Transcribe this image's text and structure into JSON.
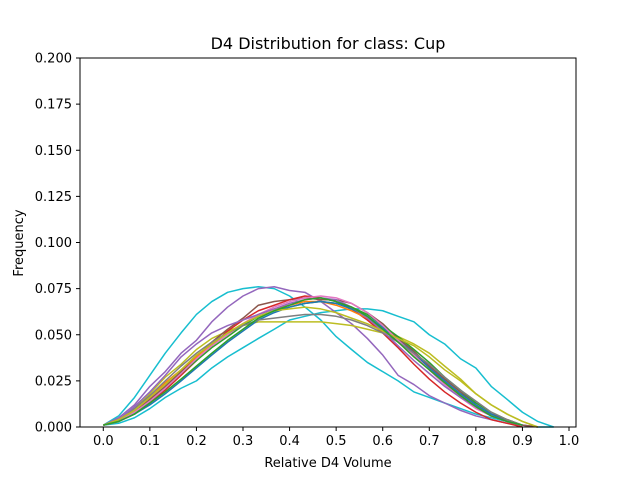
{
  "chart_data": {
    "type": "line",
    "title": "D4 Distribution for class: Cup",
    "xlabel": "Relative D4 Volume",
    "ylabel": "Frequency",
    "xlim": [
      -0.05,
      1.015
    ],
    "ylim": [
      0,
      0.2
    ],
    "xticks": [
      "0.0",
      "0.1",
      "0.2",
      "0.3",
      "0.4",
      "0.5",
      "0.6",
      "0.7",
      "0.8",
      "0.9",
      "1.0"
    ],
    "xtick_values": [
      0,
      0.1,
      0.2,
      0.3,
      0.4,
      0.5,
      0.6,
      0.7,
      0.8,
      0.9,
      1.0
    ],
    "yticks": [
      "0.000",
      "0.025",
      "0.050",
      "0.075",
      "0.100",
      "0.125",
      "0.150",
      "0.175",
      "0.200"
    ],
    "ytick_values": [
      0,
      0.025,
      0.05,
      0.075,
      0.1,
      0.125,
      0.15,
      0.175,
      0.2
    ],
    "grid": false,
    "legend": "none",
    "series": [
      {
        "color": "#17becf",
        "x": [
          0.0,
          0.033,
          0.067,
          0.1,
          0.133,
          0.167,
          0.2,
          0.233,
          0.267,
          0.3,
          0.333,
          0.367,
          0.4,
          0.433,
          0.467,
          0.5,
          0.533,
          0.567,
          0.6,
          0.633,
          0.667,
          0.7,
          0.733,
          0.767,
          0.8,
          0.833,
          0.867,
          0.9,
          0.933,
          0.967
        ],
        "values": [
          0.001,
          0.006,
          0.016,
          0.028,
          0.04,
          0.051,
          0.061,
          0.068,
          0.073,
          0.075,
          0.076,
          0.075,
          0.071,
          0.065,
          0.058,
          0.049,
          0.042,
          0.035,
          0.03,
          0.025,
          0.019,
          0.016,
          0.013,
          0.01,
          0.007,
          0.005,
          0.003,
          0.001,
          0.0,
          0.0
        ]
      },
      {
        "color": "#17becf",
        "x": [
          0.0,
          0.033,
          0.067,
          0.1,
          0.133,
          0.167,
          0.2,
          0.233,
          0.267,
          0.3,
          0.333,
          0.367,
          0.4,
          0.433,
          0.467,
          0.5,
          0.533,
          0.567,
          0.6,
          0.633,
          0.667,
          0.7,
          0.733,
          0.767,
          0.8,
          0.833,
          0.867,
          0.9,
          0.933,
          0.967
        ],
        "values": [
          0.001,
          0.002,
          0.005,
          0.01,
          0.016,
          0.021,
          0.025,
          0.032,
          0.038,
          0.043,
          0.048,
          0.053,
          0.058,
          0.06,
          0.062,
          0.063,
          0.064,
          0.064,
          0.063,
          0.06,
          0.057,
          0.05,
          0.045,
          0.037,
          0.032,
          0.022,
          0.015,
          0.008,
          0.003,
          0.0
        ]
      },
      {
        "color": "#9467bd",
        "x": [
          0.0,
          0.033,
          0.067,
          0.1,
          0.133,
          0.167,
          0.2,
          0.233,
          0.267,
          0.3,
          0.333,
          0.367,
          0.4,
          0.433,
          0.467,
          0.5,
          0.533,
          0.567,
          0.6,
          0.633,
          0.667,
          0.7,
          0.733,
          0.767,
          0.8,
          0.833,
          0.867,
          0.9,
          0.933
        ],
        "values": [
          0.001,
          0.005,
          0.012,
          0.022,
          0.03,
          0.04,
          0.047,
          0.057,
          0.065,
          0.071,
          0.075,
          0.076,
          0.074,
          0.073,
          0.068,
          0.062,
          0.056,
          0.048,
          0.039,
          0.028,
          0.023,
          0.017,
          0.013,
          0.009,
          0.006,
          0.004,
          0.002,
          0.001,
          0.0
        ]
      },
      {
        "color": "#bcbd22",
        "x": [
          0.0,
          0.033,
          0.067,
          0.1,
          0.133,
          0.167,
          0.2,
          0.233,
          0.267,
          0.3,
          0.333,
          0.367,
          0.4,
          0.433,
          0.467,
          0.5,
          0.533,
          0.567,
          0.6,
          0.633,
          0.667,
          0.7,
          0.733,
          0.767,
          0.8,
          0.833,
          0.867,
          0.9,
          0.933
        ],
        "values": [
          0.001,
          0.004,
          0.01,
          0.018,
          0.027,
          0.034,
          0.042,
          0.048,
          0.052,
          0.055,
          0.057,
          0.057,
          0.057,
          0.057,
          0.057,
          0.056,
          0.055,
          0.053,
          0.051,
          0.049,
          0.045,
          0.04,
          0.033,
          0.026,
          0.018,
          0.012,
          0.007,
          0.003,
          0.0
        ]
      },
      {
        "color": "#8c564b",
        "x": [
          0.0,
          0.033,
          0.067,
          0.1,
          0.133,
          0.167,
          0.2,
          0.233,
          0.267,
          0.3,
          0.333,
          0.367,
          0.4,
          0.433,
          0.467,
          0.5,
          0.533,
          0.567,
          0.6,
          0.633,
          0.667,
          0.7,
          0.733,
          0.767,
          0.8,
          0.833,
          0.867,
          0.9,
          0.933
        ],
        "values": [
          0.001,
          0.003,
          0.008,
          0.015,
          0.022,
          0.03,
          0.038,
          0.046,
          0.053,
          0.059,
          0.066,
          0.068,
          0.069,
          0.07,
          0.069,
          0.069,
          0.067,
          0.062,
          0.056,
          0.048,
          0.041,
          0.033,
          0.026,
          0.019,
          0.012,
          0.007,
          0.004,
          0.001,
          0.0
        ]
      },
      {
        "color": "#d62728",
        "x": [
          0.0,
          0.033,
          0.067,
          0.1,
          0.133,
          0.167,
          0.2,
          0.233,
          0.267,
          0.3,
          0.333,
          0.367,
          0.4,
          0.433,
          0.467,
          0.5,
          0.533,
          0.567,
          0.6,
          0.633,
          0.667,
          0.7,
          0.733,
          0.767,
          0.8,
          0.833,
          0.867,
          0.9
        ],
        "values": [
          0.001,
          0.003,
          0.007,
          0.013,
          0.02,
          0.028,
          0.036,
          0.044,
          0.052,
          0.058,
          0.063,
          0.066,
          0.069,
          0.071,
          0.07,
          0.068,
          0.064,
          0.058,
          0.051,
          0.043,
          0.034,
          0.026,
          0.019,
          0.013,
          0.008,
          0.004,
          0.002,
          0.0
        ]
      },
      {
        "color": "#ff7f0e",
        "x": [
          0.0,
          0.033,
          0.067,
          0.1,
          0.133,
          0.167,
          0.2,
          0.233,
          0.267,
          0.3,
          0.333,
          0.367,
          0.4,
          0.433,
          0.467,
          0.5,
          0.533,
          0.567,
          0.6,
          0.633,
          0.667,
          0.7,
          0.733,
          0.767,
          0.8,
          0.833,
          0.867,
          0.9
        ],
        "values": [
          0.001,
          0.004,
          0.009,
          0.016,
          0.024,
          0.031,
          0.038,
          0.045,
          0.051,
          0.056,
          0.061,
          0.064,
          0.066,
          0.068,
          0.068,
          0.066,
          0.063,
          0.059,
          0.053,
          0.046,
          0.039,
          0.031,
          0.024,
          0.017,
          0.011,
          0.006,
          0.003,
          0.001
        ]
      },
      {
        "color": "#2ca02c",
        "x": [
          0.0,
          0.033,
          0.067,
          0.1,
          0.133,
          0.167,
          0.2,
          0.233,
          0.267,
          0.3,
          0.333,
          0.367,
          0.4,
          0.433,
          0.467,
          0.5,
          0.533,
          0.567,
          0.6,
          0.633,
          0.667,
          0.7,
          0.733,
          0.767,
          0.8,
          0.833,
          0.867,
          0.9
        ],
        "values": [
          0.001,
          0.003,
          0.008,
          0.014,
          0.021,
          0.029,
          0.036,
          0.043,
          0.049,
          0.055,
          0.06,
          0.063,
          0.065,
          0.067,
          0.068,
          0.067,
          0.065,
          0.061,
          0.055,
          0.049,
          0.042,
          0.035,
          0.027,
          0.02,
          0.013,
          0.008,
          0.004,
          0.001
        ]
      },
      {
        "color": "#1f77b4",
        "x": [
          0.0,
          0.033,
          0.067,
          0.1,
          0.133,
          0.167,
          0.2,
          0.233,
          0.267,
          0.3,
          0.333,
          0.367,
          0.4,
          0.433,
          0.467,
          0.5,
          0.533,
          0.567,
          0.6,
          0.633,
          0.667,
          0.7,
          0.733,
          0.767,
          0.8,
          0.833,
          0.867,
          0.9
        ],
        "values": [
          0.001,
          0.003,
          0.007,
          0.012,
          0.018,
          0.025,
          0.032,
          0.039,
          0.046,
          0.052,
          0.058,
          0.062,
          0.065,
          0.067,
          0.068,
          0.067,
          0.064,
          0.06,
          0.054,
          0.047,
          0.04,
          0.032,
          0.025,
          0.018,
          0.012,
          0.007,
          0.003,
          0.001
        ]
      },
      {
        "color": "#e377c2",
        "x": [
          0.0,
          0.033,
          0.067,
          0.1,
          0.133,
          0.167,
          0.2,
          0.233,
          0.267,
          0.3,
          0.333,
          0.367,
          0.4,
          0.433,
          0.467,
          0.5,
          0.533,
          0.567,
          0.6,
          0.633,
          0.667,
          0.7,
          0.733,
          0.767,
          0.8,
          0.833,
          0.867,
          0.9
        ],
        "values": [
          0.001,
          0.003,
          0.008,
          0.014,
          0.021,
          0.029,
          0.037,
          0.044,
          0.05,
          0.056,
          0.061,
          0.065,
          0.068,
          0.07,
          0.071,
          0.07,
          0.067,
          0.062,
          0.055,
          0.047,
          0.039,
          0.031,
          0.023,
          0.016,
          0.01,
          0.006,
          0.003,
          0.001
        ]
      },
      {
        "color": "#7f7f7f",
        "x": [
          0.0,
          0.033,
          0.067,
          0.1,
          0.133,
          0.167,
          0.2,
          0.233,
          0.267,
          0.3,
          0.333,
          0.367,
          0.4,
          0.433,
          0.467,
          0.5,
          0.533,
          0.567,
          0.6,
          0.633,
          0.667,
          0.7,
          0.733,
          0.767,
          0.8,
          0.833,
          0.867,
          0.9
        ],
        "values": [
          0.001,
          0.004,
          0.01,
          0.017,
          0.025,
          0.033,
          0.04,
          0.046,
          0.051,
          0.055,
          0.058,
          0.059,
          0.06,
          0.061,
          0.061,
          0.06,
          0.058,
          0.055,
          0.051,
          0.046,
          0.04,
          0.034,
          0.027,
          0.02,
          0.014,
          0.008,
          0.004,
          0.001
        ]
      },
      {
        "color": "#9467bd",
        "x": [
          0.0,
          0.033,
          0.067,
          0.1,
          0.133,
          0.167,
          0.2,
          0.233,
          0.267,
          0.3,
          0.333,
          0.367,
          0.4,
          0.433,
          0.467,
          0.5,
          0.533,
          0.567,
          0.6,
          0.633,
          0.667,
          0.7,
          0.733,
          0.767,
          0.8,
          0.833,
          0.867,
          0.9
        ],
        "values": [
          0.001,
          0.004,
          0.011,
          0.019,
          0.028,
          0.038,
          0.045,
          0.051,
          0.055,
          0.058,
          0.061,
          0.064,
          0.067,
          0.069,
          0.07,
          0.069,
          0.065,
          0.059,
          0.052,
          0.044,
          0.036,
          0.029,
          0.022,
          0.016,
          0.011,
          0.006,
          0.003,
          0.001
        ]
      },
      {
        "color": "#bcbd22",
        "x": [
          0.0,
          0.033,
          0.067,
          0.1,
          0.133,
          0.167,
          0.2,
          0.233,
          0.267,
          0.3,
          0.333,
          0.367,
          0.4,
          0.433,
          0.467,
          0.5,
          0.533,
          0.567,
          0.6,
          0.633,
          0.667,
          0.7,
          0.733,
          0.767,
          0.8,
          0.833,
          0.867,
          0.9,
          0.933
        ],
        "values": [
          0.001,
          0.004,
          0.009,
          0.016,
          0.023,
          0.031,
          0.039,
          0.045,
          0.051,
          0.056,
          0.06,
          0.063,
          0.064,
          0.065,
          0.064,
          0.062,
          0.059,
          0.056,
          0.052,
          0.048,
          0.044,
          0.038,
          0.031,
          0.025,
          0.018,
          0.012,
          0.007,
          0.003,
          0.0
        ]
      },
      {
        "color": "#2ca02c",
        "x": [
          0.0,
          0.033,
          0.067,
          0.1,
          0.133,
          0.167,
          0.2,
          0.233,
          0.267,
          0.3,
          0.333,
          0.367,
          0.4,
          0.433,
          0.467,
          0.5,
          0.533,
          0.567,
          0.6,
          0.633,
          0.667,
          0.7,
          0.733,
          0.767,
          0.8,
          0.833,
          0.867,
          0.9
        ],
        "values": [
          0.001,
          0.003,
          0.007,
          0.013,
          0.019,
          0.026,
          0.033,
          0.04,
          0.047,
          0.053,
          0.059,
          0.063,
          0.066,
          0.069,
          0.07,
          0.068,
          0.065,
          0.06,
          0.053,
          0.046,
          0.038,
          0.031,
          0.024,
          0.017,
          0.011,
          0.006,
          0.003,
          0.001
        ]
      }
    ]
  }
}
